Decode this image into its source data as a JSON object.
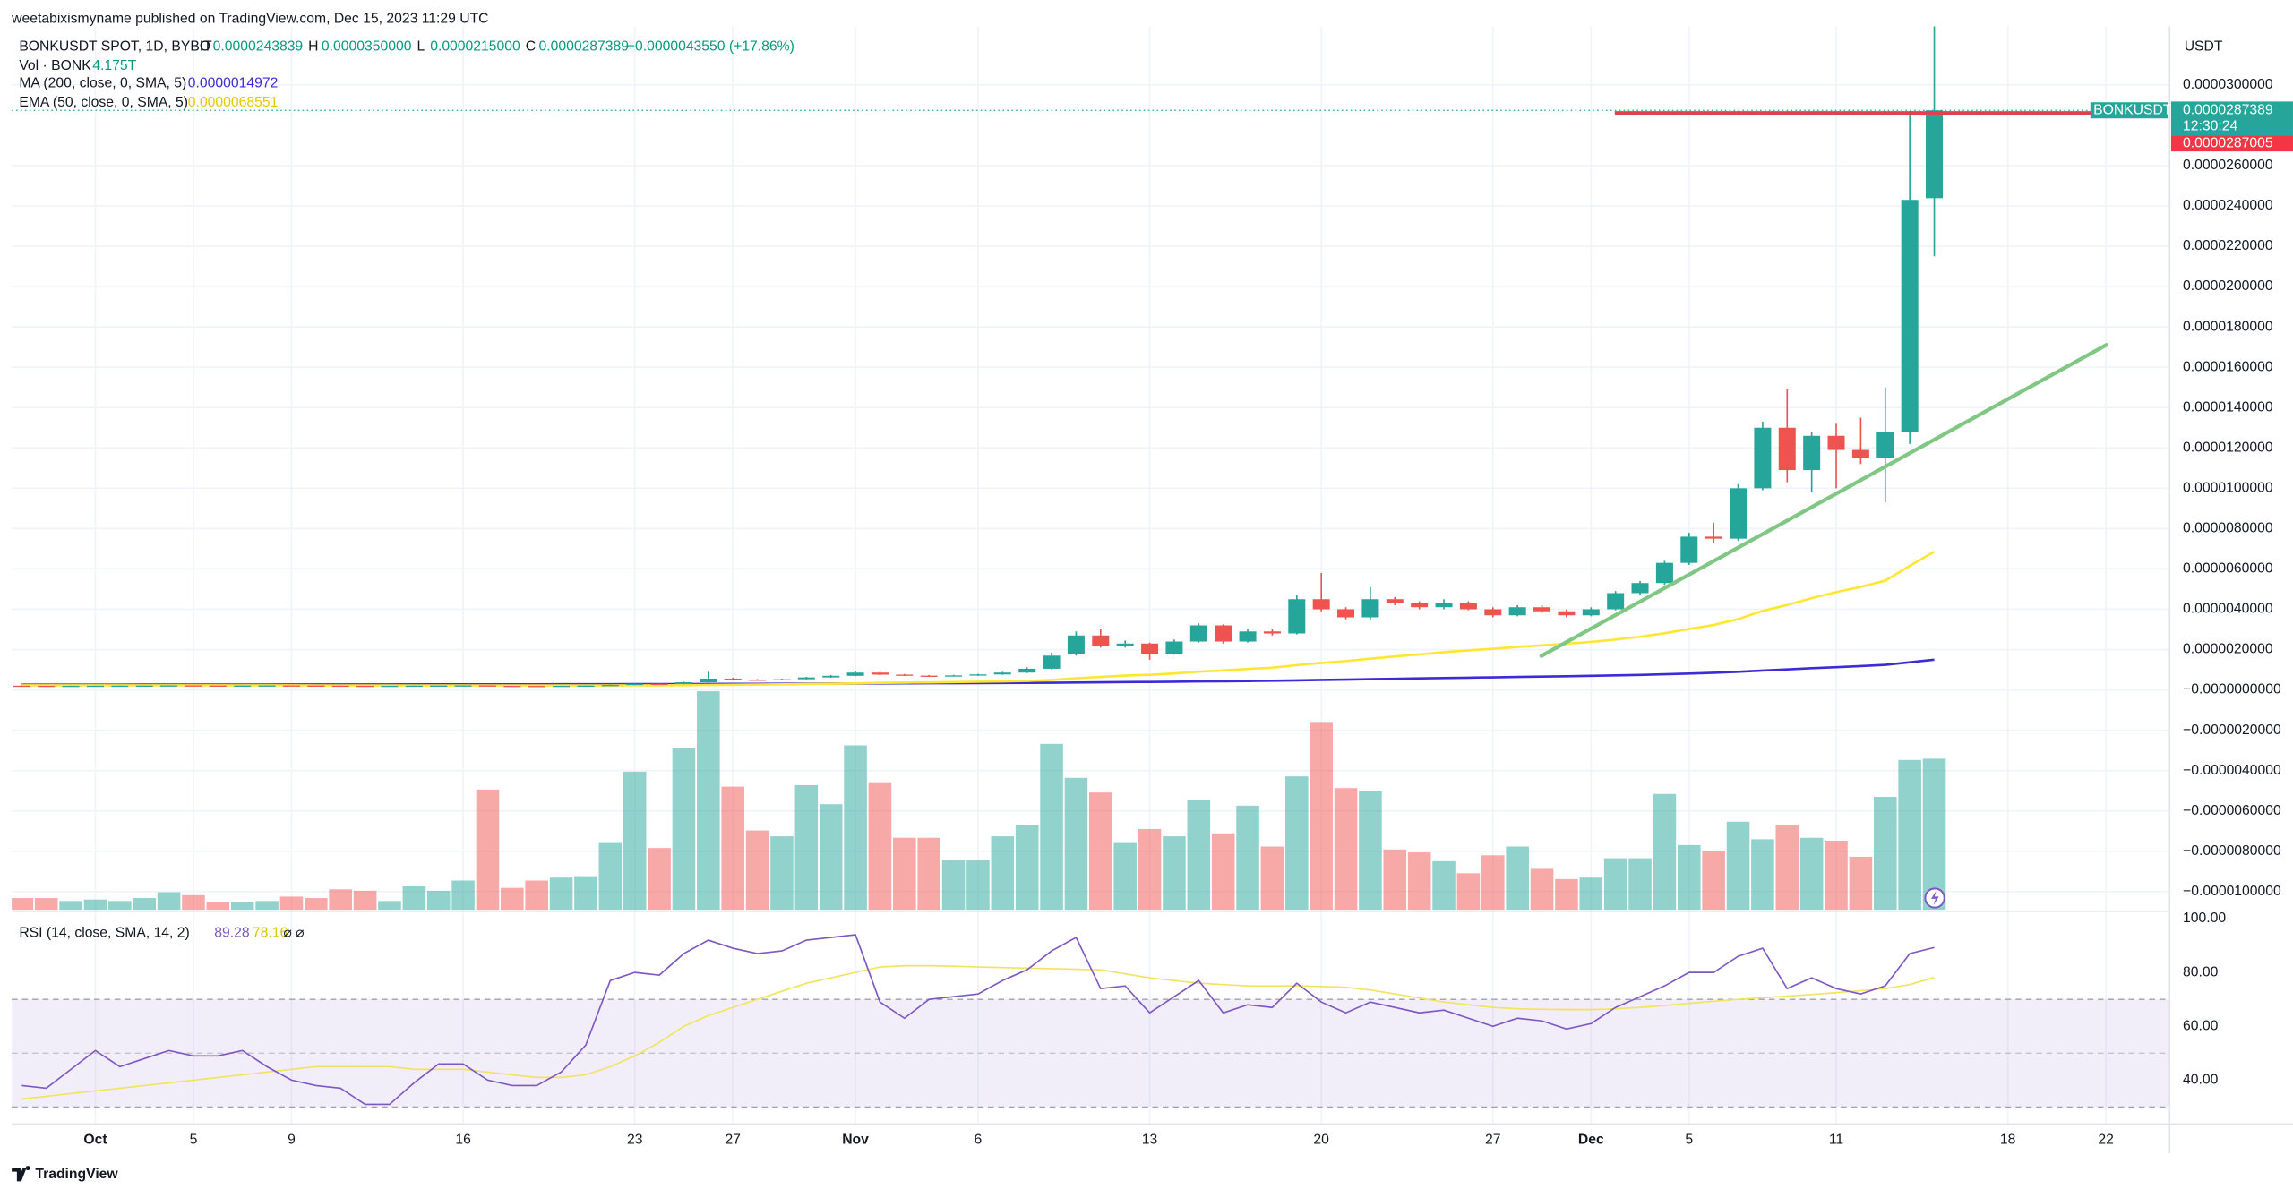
{
  "chart_data": {
    "type": "candlestick",
    "publisher": "weetabixismyname published on TradingView.com, Dec 15, 2023 11:29 UTC",
    "title": "BONKUSDT SPOT, 1D, BYBIT",
    "ohlc_keys": [
      "O",
      "H",
      "L",
      "C"
    ],
    "ohlc_labels": [
      "0.0000243839",
      "0.0000350000",
      "0.0000215000",
      "0.0000287389"
    ],
    "change_label": "+0.0000043550 (+17.86%)",
    "currency": "USDT",
    "symbol_tag": "BONKUSDT",
    "countdown": "12:30:24",
    "bid_label": "0.0000287005",
    "brand": "TradingView",
    "up_color": "#26a69a",
    "down_color": "#ef5350",
    "grid": true,
    "xlim": [
      -0.41,
      87.6
    ],
    "xticks": [
      {
        "value": 3,
        "label": "Oct"
      },
      {
        "value": 7,
        "label": "5"
      },
      {
        "value": 11,
        "label": "9"
      },
      {
        "value": 18,
        "label": "16"
      },
      {
        "value": 25,
        "label": "23"
      },
      {
        "value": 29,
        "label": "27"
      },
      {
        "value": 34,
        "label": "Nov"
      },
      {
        "value": 39,
        "label": "6"
      },
      {
        "value": 46,
        "label": "13"
      },
      {
        "value": 53,
        "label": "20"
      },
      {
        "value": 60,
        "label": "27"
      },
      {
        "value": 64,
        "label": "Dec"
      },
      {
        "value": 68,
        "label": "5"
      },
      {
        "value": 74,
        "label": "11"
      },
      {
        "value": 81,
        "label": "18"
      },
      {
        "value": 85,
        "label": "22"
      }
    ],
    "ylim": [
      -1.09e-05,
      3.29e-05
    ],
    "yticks": [
      {
        "value": 3e-05,
        "label": "0.0000300000"
      },
      {
        "value": 2.6e-05,
        "label": "0.0000260000"
      },
      {
        "value": 2.4e-05,
        "label": "0.0000240000"
      },
      {
        "value": 2.2e-05,
        "label": "0.0000220000"
      },
      {
        "value": 2e-05,
        "label": "0.0000200000"
      },
      {
        "value": 1.8e-05,
        "label": "0.0000180000"
      },
      {
        "value": 1.6e-05,
        "label": "0.0000160000"
      },
      {
        "value": 1.4e-05,
        "label": "0.0000140000"
      },
      {
        "value": 1.2e-05,
        "label": "0.0000120000"
      },
      {
        "value": 1e-05,
        "label": "0.0000100000"
      },
      {
        "value": 8e-06,
        "label": "0.0000080000"
      },
      {
        "value": 6e-06,
        "label": "0.0000060000"
      },
      {
        "value": 4e-06,
        "label": "0.0000040000"
      },
      {
        "value": 2e-06,
        "label": "0.0000020000"
      },
      {
        "value": 0,
        "label": "−0.0000000000"
      },
      {
        "value": -2e-06,
        "label": "−0.0000020000"
      },
      {
        "value": -4e-06,
        "label": "−0.0000040000"
      },
      {
        "value": -6e-06,
        "label": "−0.0000060000"
      },
      {
        "value": -8e-06,
        "label": "−0.0000080000"
      },
      {
        "value": -1e-05,
        "label": "−0.0000100000"
      }
    ],
    "open": [
      2.1e-07,
      2.05e-07,
      2e-07,
      2.04e-07,
      2.08e-07,
      2.11e-07,
      2.16e-07,
      2.24e-07,
      2.19e-07,
      2.15e-07,
      2.19e-07,
      2.23e-07,
      2.18e-07,
      2.13e-07,
      2.06e-07,
      2.01e-07,
      2.05e-07,
      2.12e-07,
      2.17e-07,
      2.24e-07,
      2.02e-07,
      1.98e-07,
      1.95e-07,
      2.04e-07,
      2.15e-07,
      2.45e-07,
      3.1e-07,
      2.9e-07,
      3.8e-07,
      5.6e-07,
      5.1e-07,
      4.8e-07,
      5.3e-07,
      6.2e-07,
      7e-07,
      8.6e-07,
      7.6e-07,
      7.1e-07,
      6.8e-07,
      7.2e-07,
      7.7e-07,
      8.6e-07,
      1.05e-06,
      1.8e-06,
      2.7e-06,
      2.2e-06,
      2.3e-06,
      1.8e-06,
      2.4e-06,
      3.2e-06,
      2.4e-06,
      2.9e-06,
      2.8e-06,
      4.5e-06,
      4e-06,
      3.6e-06,
      4.5e-06,
      4.3e-06,
      4.1e-06,
      4.3e-06,
      4e-06,
      3.7e-06,
      4.1e-06,
      3.9e-06,
      3.7e-06,
      4e-06,
      4.8e-06,
      5.3e-06,
      6.3e-06,
      7.6e-06,
      7.5e-06,
      1e-05,
      1.3e-05,
      1.09e-05,
      1.26e-05,
      1.19e-05,
      1.15e-05,
      1.28e-05,
      2.43839e-05
    ],
    "high": [
      2.14e-07,
      2.09e-07,
      2.07e-07,
      2.11e-07,
      2.15e-07,
      2.2e-07,
      2.29e-07,
      2.27e-07,
      2.22e-07,
      2.23e-07,
      2.27e-07,
      2.26e-07,
      2.21e-07,
      2.16e-07,
      2.09e-07,
      2.08e-07,
      2.16e-07,
      2.21e-07,
      2.29e-07,
      2.28e-07,
      2.06e-07,
      2.01e-07,
      2.08e-07,
      2.2e-07,
      2.55e-07,
      3.3e-07,
      3.25e-07,
      4.1e-07,
      9e-07,
      6.1e-07,
      5.4e-07,
      5.6e-07,
      6.5e-07,
      7.4e-07,
      9.2e-07,
      8.9e-07,
      7.9e-07,
      7.4e-07,
      7.5e-07,
      8e-07,
      9e-07,
      1.12e-06,
      1.85e-06,
      2.9e-06,
      3e-06,
      2.45e-06,
      2.35e-06,
      2.5e-06,
      3.3e-06,
      3.25e-06,
      3e-06,
      3e-06,
      4.7e-06,
      5.8e-06,
      4.1e-06,
      5.1e-06,
      4.6e-06,
      4.4e-06,
      4.5e-06,
      4.4e-06,
      4.1e-06,
      4.2e-06,
      4.2e-06,
      4e-06,
      4.1e-06,
      4.9e-06,
      5.4e-06,
      6.4e-06,
      7.8e-06,
      8.3e-06,
      1.02e-05,
      1.33e-05,
      1.49e-05,
      1.28e-05,
      1.32e-05,
      1.35e-05,
      1.5e-05,
      2.87e-05,
      3.5e-05
    ],
    "low": [
      2.02e-07,
      1.97e-07,
      1.97e-07,
      2.01e-07,
      2.05e-07,
      2.08e-07,
      2.13e-07,
      2.16e-07,
      2.12e-07,
      2.12e-07,
      2.16e-07,
      2.15e-07,
      2.1e-07,
      2.03e-07,
      1.98e-07,
      1.98e-07,
      2.02e-07,
      2.09e-07,
      2.14e-07,
      1.99e-07,
      1.95e-07,
      1.92e-07,
      1.92e-07,
      2.01e-07,
      2.12e-07,
      2.4e-07,
      2.8e-07,
      2.85e-07,
      3.7e-07,
      4.9e-07,
      4.6e-07,
      4.7e-07,
      5.2e-07,
      6e-07,
      6.8e-07,
      7.4e-07,
      6.9e-07,
      6.6e-07,
      6.7e-07,
      7e-07,
      7.5e-07,
      8.4e-07,
      1.02e-06,
      1.7e-06,
      2.1e-06,
      2.1e-06,
      1.5e-06,
      1.75e-06,
      2.35e-06,
      2.3e-06,
      2.35e-06,
      2.7e-06,
      2.75e-06,
      3.9e-06,
      3.5e-06,
      3.5e-06,
      4.2e-06,
      4e-06,
      4e-06,
      3.95e-06,
      3.6e-06,
      3.65e-06,
      3.8e-06,
      3.6e-06,
      3.65e-06,
      3.95e-06,
      4.7e-06,
      5.2e-06,
      6.2e-06,
      7.3e-06,
      7.4e-06,
      9.9e-06,
      1.03e-05,
      9.8e-06,
      1e-05,
      1.12e-05,
      9.3e-06,
      1.22e-05,
      2.15e-05
    ],
    "close": [
      2.05e-07,
      2e-07,
      2.04e-07,
      2.08e-07,
      2.11e-07,
      2.16e-07,
      2.24e-07,
      2.19e-07,
      2.15e-07,
      2.19e-07,
      2.23e-07,
      2.18e-07,
      2.13e-07,
      2.06e-07,
      2.01e-07,
      2.05e-07,
      2.12e-07,
      2.17e-07,
      2.24e-07,
      2.02e-07,
      1.98e-07,
      1.95e-07,
      2.04e-07,
      2.15e-07,
      2.45e-07,
      3.1e-07,
      2.9e-07,
      3.8e-07,
      5.6e-07,
      5.1e-07,
      4.8e-07,
      5.3e-07,
      6.2e-07,
      7e-07,
      8.6e-07,
      7.6e-07,
      7.1e-07,
      6.8e-07,
      7.2e-07,
      7.7e-07,
      8.6e-07,
      1.05e-06,
      1.7e-06,
      2.7e-06,
      2.2e-06,
      2.3e-06,
      1.8e-06,
      2.4e-06,
      3.2e-06,
      2.4e-06,
      2.9e-06,
      2.8e-06,
      4.5e-06,
      4e-06,
      3.6e-06,
      4.5e-06,
      4.3e-06,
      4.1e-06,
      4.3e-06,
      4e-06,
      3.7e-06,
      4.1e-06,
      3.9e-06,
      3.7e-06,
      4e-06,
      4.8e-06,
      5.3e-06,
      6.3e-06,
      7.6e-06,
      7.5e-06,
      1e-05,
      1.3e-05,
      1.09e-05,
      1.26e-05,
      1.19e-05,
      1.15e-05,
      1.28e-05,
      2.43e-05,
      2.87389e-05
    ],
    "volume": {
      "name": "Vol · BONK",
      "value_label": "4.175T",
      "values": [
        0.36,
        0.36,
        0.28,
        0.32,
        0.28,
        0.36,
        0.52,
        0.44,
        0.24,
        0.24,
        0.28,
        0.4,
        0.36,
        0.6,
        0.56,
        0.28,
        0.68,
        0.56,
        0.84,
        3.33,
        0.64,
        0.84,
        0.92,
        0.96,
        1.89,
        3.82,
        1.73,
        4.46,
        6.02,
        3.41,
        2.21,
        2.05,
        3.45,
        2.93,
        4.54,
        3.53,
        2.01,
        2.01,
        1.41,
        1.41,
        2.05,
        2.37,
        4.58,
        3.65,
        3.25,
        1.89,
        2.25,
        2.05,
        3.05,
        2.13,
        2.89,
        1.77,
        3.69,
        5.18,
        3.37,
        3.29,
        1.69,
        1.61,
        1.37,
        1.04,
        1.53,
        1.77,
        1.16,
        0.88,
        0.92,
        1.45,
        1.45,
        3.21,
        1.81,
        1.65,
        2.45,
        1.97,
        2.37,
        2.01,
        1.93,
        1.49,
        3.13,
        4.14,
        4.175
      ]
    },
    "ma200": {
      "name": "MA (200, close, 0, SMA, 5)",
      "color": "#3d2bd9",
      "values": [
        2.6e-07,
        2.61e-07,
        2.62e-07,
        2.63e-07,
        2.64e-07,
        2.65e-07,
        2.66e-07,
        2.67e-07,
        2.68e-07,
        2.69e-07,
        2.7e-07,
        2.71e-07,
        2.72e-07,
        2.73e-07,
        2.74e-07,
        2.75e-07,
        2.76e-07,
        2.77e-07,
        2.78e-07,
        2.79e-07,
        2.8e-07,
        2.81e-07,
        2.82e-07,
        2.83e-07,
        2.85e-07,
        2.87e-07,
        2.89e-07,
        2.92e-07,
        2.96e-07,
        3e-07,
        3.03e-07,
        3.07e-07,
        3.11e-07,
        3.15e-07,
        3.2e-07,
        3.24e-07,
        3.28e-07,
        3.32e-07,
        3.36e-07,
        3.4e-07,
        3.45e-07,
        3.5e-07,
        3.58e-07,
        3.7e-07,
        3.8e-07,
        3.9e-07,
        3.98e-07,
        4.08e-07,
        4.2e-07,
        4.3e-07,
        4.42e-07,
        4.54e-07,
        4.75e-07,
        4.95e-07,
        5.12e-07,
        5.32e-07,
        5.52e-07,
        5.7e-07,
        5.9e-07,
        6.08e-07,
        6.25e-07,
        6.44e-07,
        6.62e-07,
        6.8e-07,
        7e-07,
        7.22e-07,
        7.47e-07,
        7.77e-07,
        8.12e-07,
        8.5e-07,
        8.98e-07,
        9.6e-07,
        1.015e-06,
        1.075e-06,
        1.13e-06,
        1.185e-06,
        1.245e-06,
        1.37e-06,
        1.4972e-06
      ]
    },
    "ema50": {
      "name": "EMA (50, close, 0, SMA, 5)",
      "color": "#ffe633",
      "values": [
        2.3e-07,
        2.29e-07,
        2.28e-07,
        2.28e-07,
        2.27e-07,
        2.27e-07,
        2.27e-07,
        2.27e-07,
        2.26e-07,
        2.26e-07,
        2.26e-07,
        2.26e-07,
        2.25e-07,
        2.25e-07,
        2.24e-07,
        2.24e-07,
        2.24e-07,
        2.24e-07,
        2.24e-07,
        2.23e-07,
        2.23e-07,
        2.22e-07,
        2.22e-07,
        2.22e-07,
        2.23e-07,
        2.26e-07,
        2.28e-07,
        2.34e-07,
        2.47e-07,
        2.58e-07,
        2.68e-07,
        2.79e-07,
        2.93e-07,
        3.09e-07,
        3.31e-07,
        3.48e-07,
        3.62e-07,
        3.75e-07,
        3.89e-07,
        4.04e-07,
        4.22e-07,
        4.46e-07,
        4.95e-07,
        5.81e-07,
        6.45e-07,
        7.1e-07,
        7.52e-07,
        8.15e-07,
        9.08e-07,
        9.67e-07,
        1.04e-06,
        1.1e-06,
        1.23e-06,
        1.34e-06,
        1.43e-06,
        1.55e-06,
        1.66e-06,
        1.76e-06,
        1.87e-06,
        1.96e-06,
        2.04e-06,
        2.13e-06,
        2.21e-06,
        2.29e-06,
        2.38e-06,
        2.5e-06,
        2.64e-06,
        2.81e-06,
        3.02e-06,
        3.22e-06,
        3.51e-06,
        3.92e-06,
        4.21e-06,
        4.55e-06,
        4.85e-06,
        5.11e-06,
        5.42e-06,
        6.15e-06,
        6.8551e-06
      ]
    },
    "rsi": {
      "name": "RSI (14, close, SMA, 14, 2)",
      "color": "#7e57c2",
      "extra": "⌀ ⌀",
      "ylim": [
        23.7,
        102.2
      ],
      "yticks": [
        {
          "value": 100,
          "label": "100.00"
        },
        {
          "value": 80,
          "label": "80.00"
        },
        {
          "value": 60,
          "label": "60.00"
        },
        {
          "value": 40,
          "label": "40.00"
        }
      ],
      "levels": [
        70,
        50,
        30
      ],
      "values": [
        38,
        37,
        44,
        51,
        45,
        48,
        51,
        49,
        49,
        51,
        45,
        40,
        38,
        37,
        31,
        31,
        39,
        46,
        46,
        40,
        38,
        38,
        43,
        53,
        77,
        80,
        79,
        87,
        92,
        89,
        87,
        88,
        92,
        93,
        94,
        69,
        63,
        70,
        71,
        72,
        77,
        81,
        88,
        93,
        74,
        75,
        65,
        71,
        77,
        65,
        68,
        67,
        76,
        69,
        65,
        69,
        67,
        65,
        66,
        63,
        60,
        63,
        62,
        59,
        61,
        67,
        71,
        75,
        80,
        80,
        86,
        89,
        74,
        78,
        74,
        72,
        75,
        87,
        89.28
      ],
      "ma": {
        "color": "#f2e35e",
        "values": [
          33,
          34,
          35,
          36,
          37,
          38,
          39,
          40,
          41,
          42,
          43,
          44,
          45,
          45,
          45,
          45,
          44,
          44,
          44,
          43,
          42,
          41,
          41,
          42,
          45,
          49,
          54,
          60,
          64,
          67,
          70,
          73,
          76,
          78,
          80,
          82,
          82.5,
          82.5,
          82.3,
          82,
          81.8,
          81.6,
          81.4,
          81.2,
          81,
          79.5,
          78,
          77,
          76,
          75.5,
          75,
          75,
          75,
          74.8,
          74.5,
          73.5,
          72,
          70.5,
          69,
          68,
          67,
          66.5,
          66.3,
          66.2,
          66.2,
          66.5,
          67,
          67.7,
          68.5,
          69.3,
          70,
          70.6,
          71.2,
          71.8,
          72.5,
          73.2,
          74,
          75.5,
          78.16
        ]
      }
    }
  }
}
